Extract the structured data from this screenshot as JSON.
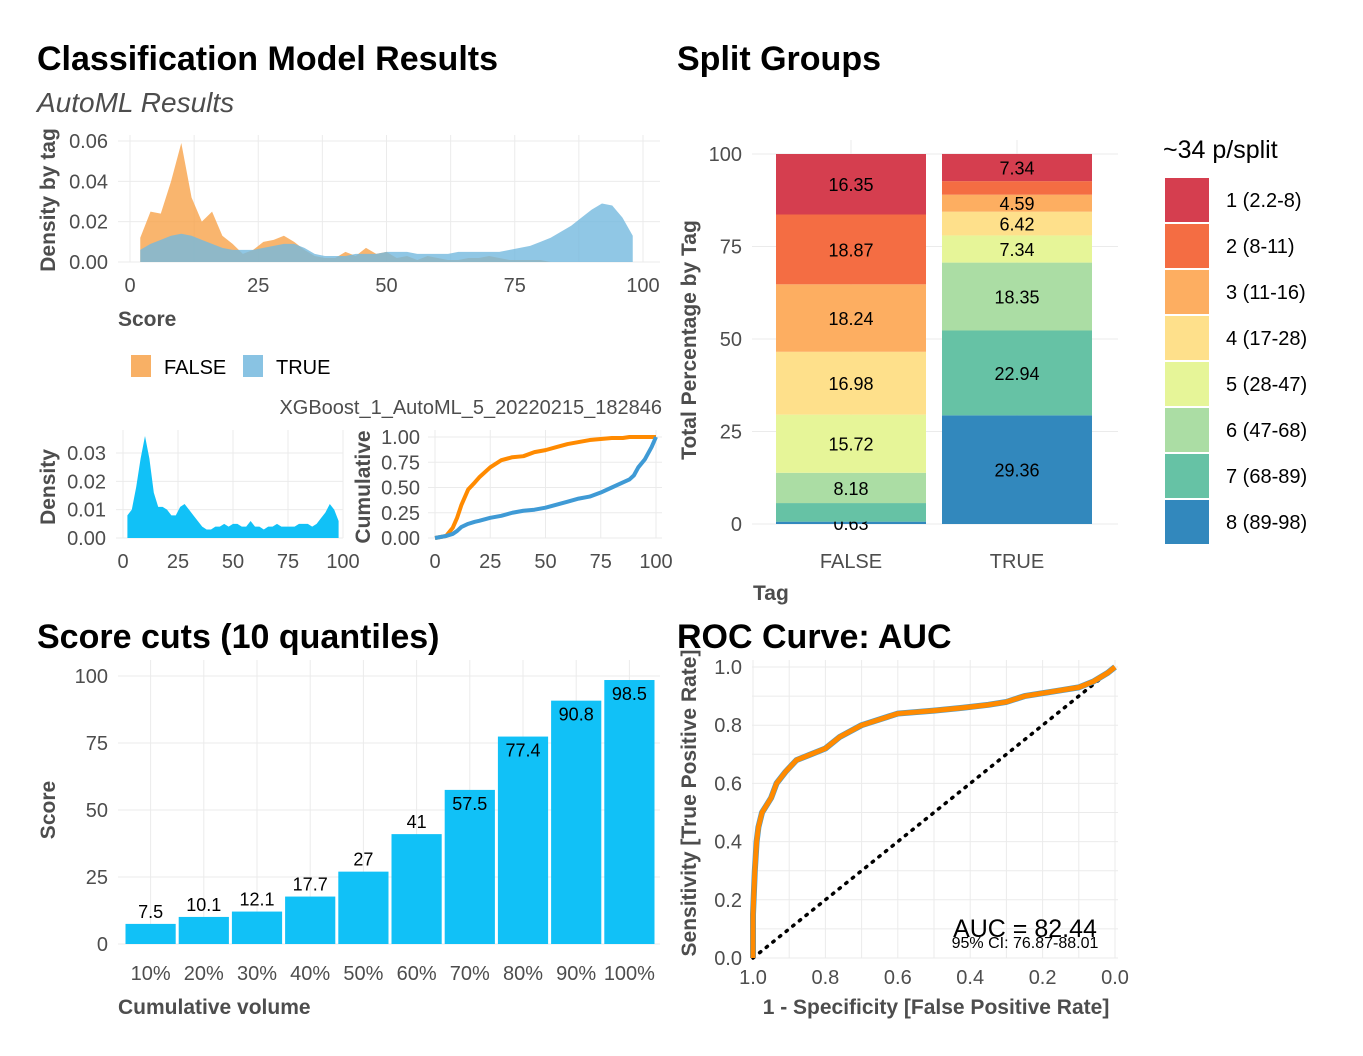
{
  "titles": {
    "main": "Classification Model Results",
    "main_sub": "AutoML Results",
    "split": "Split Groups",
    "cuts": "Score cuts (10 quantiles)",
    "roc": "ROC Curve: AUC"
  },
  "model_name": "XGBoost_1_AutoML_5_20220215_182846",
  "colors": {
    "false": "#F7A24A",
    "true": "#74B9DE",
    "density": "#11C1F7",
    "cum_false": "#FF8A00",
    "cum_true": "#3F9AD5",
    "roc": "#FF8A00",
    "split": [
      "#D53E4F",
      "#F46D43",
      "#FDAE61",
      "#FEE08B",
      "#E6F598",
      "#ABDDA4",
      "#66C2A5",
      "#3288BD"
    ]
  },
  "chart_data": [
    {
      "id": "density_by_tag",
      "type": "area",
      "xlabel": "Score",
      "ylabel": "Density by tag",
      "xticks": [
        "0",
        "25",
        "50",
        "75",
        "100"
      ],
      "yticks": [
        "0.00",
        "0.02",
        "0.04",
        "0.06"
      ],
      "xlim": [
        0,
        100
      ],
      "ylim": [
        0,
        0.06
      ],
      "legend": [
        "FALSE",
        "TRUE"
      ],
      "x": [
        2,
        4,
        6,
        8,
        10,
        12,
        14,
        16,
        18,
        20,
        22,
        24,
        26,
        28,
        30,
        32,
        34,
        36,
        38,
        40,
        42,
        44,
        46,
        48,
        50,
        52,
        54,
        56,
        58,
        60,
        62,
        64,
        66,
        68,
        70,
        72,
        74,
        76,
        78,
        80,
        82,
        84,
        86,
        88,
        90,
        92,
        94,
        96,
        98
      ],
      "series": [
        {
          "name": "FALSE",
          "values": [
            0.012,
            0.025,
            0.024,
            0.04,
            0.059,
            0.032,
            0.02,
            0.025,
            0.013,
            0.009,
            0.004,
            0.006,
            0.01,
            0.011,
            0.013,
            0.01,
            0.006,
            0.003,
            0.002,
            0.002,
            0.005,
            0.003,
            0.007,
            0.004,
            0.005,
            0.002,
            0.003,
            0.001,
            0.003,
            0.002,
            0.001,
            0.001,
            0.002,
            0.002,
            0.003,
            0.002,
            0.001,
            0.001,
            0.001,
            0.001,
            0.0,
            0.0,
            0.0,
            0.0,
            0.0,
            0.0,
            0.0,
            0.0,
            0.0
          ]
        },
        {
          "name": "TRUE",
          "values": [
            0.006,
            0.009,
            0.011,
            0.013,
            0.014,
            0.013,
            0.011,
            0.009,
            0.007,
            0.006,
            0.006,
            0.006,
            0.007,
            0.008,
            0.009,
            0.009,
            0.007,
            0.004,
            0.003,
            0.003,
            0.003,
            0.004,
            0.004,
            0.004,
            0.005,
            0.005,
            0.005,
            0.004,
            0.004,
            0.004,
            0.004,
            0.005,
            0.005,
            0.005,
            0.005,
            0.005,
            0.006,
            0.007,
            0.008,
            0.01,
            0.012,
            0.015,
            0.018,
            0.022,
            0.026,
            0.029,
            0.028,
            0.022,
            0.013
          ]
        }
      ]
    },
    {
      "id": "density_total",
      "type": "area",
      "xlabel": "",
      "ylabel": "Density",
      "xticks": [
        "0",
        "25",
        "50",
        "75",
        "100"
      ],
      "yticks": [
        "0.00",
        "0.01",
        "0.02",
        "0.03"
      ],
      "xlim": [
        0,
        100
      ],
      "ylim": [
        0,
        0.035
      ],
      "x": [
        2,
        4,
        6,
        8,
        10,
        12,
        14,
        16,
        18,
        20,
        22,
        24,
        26,
        28,
        30,
        32,
        34,
        36,
        38,
        40,
        42,
        44,
        46,
        48,
        50,
        52,
        54,
        56,
        58,
        60,
        62,
        64,
        66,
        68,
        70,
        72,
        74,
        76,
        78,
        80,
        82,
        84,
        86,
        88,
        90,
        92,
        94,
        96,
        98
      ],
      "values": [
        0.008,
        0.01,
        0.018,
        0.028,
        0.036,
        0.028,
        0.016,
        0.011,
        0.011,
        0.01,
        0.008,
        0.008,
        0.011,
        0.012,
        0.01,
        0.008,
        0.006,
        0.004,
        0.003,
        0.003,
        0.004,
        0.004,
        0.005,
        0.004,
        0.005,
        0.005,
        0.004,
        0.004,
        0.006,
        0.004,
        0.004,
        0.003,
        0.004,
        0.004,
        0.005,
        0.004,
        0.004,
        0.004,
        0.004,
        0.005,
        0.005,
        0.005,
        0.004,
        0.005,
        0.007,
        0.009,
        0.012,
        0.01,
        0.006
      ]
    },
    {
      "id": "cumulative",
      "type": "line",
      "xlabel": "",
      "ylabel": "Cumulative",
      "xticks": [
        "0",
        "25",
        "50",
        "75",
        "100"
      ],
      "yticks": [
        "0.00",
        "0.25",
        "0.50",
        "0.75",
        "1.00"
      ],
      "xlim": [
        0,
        100
      ],
      "ylim": [
        0,
        1
      ],
      "x": [
        0,
        5,
        8,
        10,
        12,
        15,
        18,
        20,
        25,
        30,
        35,
        40,
        45,
        50,
        55,
        60,
        65,
        70,
        75,
        80,
        85,
        88,
        90,
        92,
        95,
        98,
        100
      ],
      "series": [
        {
          "name": "FALSE",
          "values": [
            0.0,
            0.02,
            0.1,
            0.2,
            0.33,
            0.48,
            0.55,
            0.6,
            0.7,
            0.77,
            0.8,
            0.81,
            0.85,
            0.87,
            0.9,
            0.93,
            0.95,
            0.97,
            0.98,
            0.99,
            0.99,
            1.0,
            1.0,
            1.0,
            1.0,
            1.0,
            1.0
          ]
        },
        {
          "name": "TRUE",
          "values": [
            0.0,
            0.02,
            0.04,
            0.07,
            0.11,
            0.14,
            0.16,
            0.17,
            0.2,
            0.22,
            0.25,
            0.27,
            0.28,
            0.3,
            0.33,
            0.36,
            0.39,
            0.41,
            0.45,
            0.5,
            0.55,
            0.58,
            0.62,
            0.7,
            0.78,
            0.9,
            1.0
          ]
        }
      ]
    },
    {
      "id": "split_groups",
      "type": "bar",
      "xlabel": "Tag",
      "ylabel": "Total Percentage by Tag",
      "categories": [
        "FALSE",
        "TRUE"
      ],
      "yticks": [
        "0",
        "25",
        "50",
        "75",
        "100"
      ],
      "ylim": [
        0,
        100
      ],
      "legend_title": "~34 p/split",
      "groups": [
        "1 (2.2-8)",
        "2 (8-11)",
        "3 (11-16)",
        "4 (17-28)",
        "5 (28-47)",
        "6 (47-68)",
        "7 (68-89)",
        "8 (89-98)"
      ],
      "values": {
        "FALSE": [
          16.35,
          18.87,
          18.24,
          16.98,
          15.72,
          8.18,
          5.03,
          0.63
        ],
        "TRUE": [
          7.34,
          3.67,
          4.59,
          6.42,
          7.34,
          18.35,
          22.94,
          29.36
        ]
      },
      "labels": {
        "FALSE": [
          "16.35",
          "18.87",
          "18.24",
          "16.98",
          "15.72",
          "8.18",
          "",
          "0.63"
        ],
        "TRUE": [
          "7.34",
          "",
          "4.59",
          "6.42",
          "7.34",
          "18.35",
          "22.94",
          "29.36"
        ]
      }
    },
    {
      "id": "score_cuts",
      "type": "bar",
      "xlabel": "Cumulative volume",
      "ylabel": "Score",
      "categories": [
        "10%",
        "20%",
        "30%",
        "40%",
        "50%",
        "60%",
        "70%",
        "80%",
        "90%",
        "100%"
      ],
      "values": [
        7.5,
        10.1,
        12.1,
        17.7,
        27,
        41,
        57.5,
        77.4,
        90.8,
        98.5
      ],
      "labels": [
        "7.5",
        "10.1",
        "12.1",
        "17.7",
        "27",
        "41",
        "57.5",
        "77.4",
        "90.8",
        "98.5"
      ],
      "yticks": [
        "0",
        "25",
        "50",
        "75",
        "100"
      ],
      "ylim": [
        0,
        100
      ]
    },
    {
      "id": "roc",
      "type": "line",
      "xlabel": "1 - Specificity [False Positive Rate]",
      "ylabel": "Sensitivity [True Positive Rate]",
      "xticks": [
        "1.0",
        "0.8",
        "0.6",
        "0.4",
        "0.2",
        "0.0"
      ],
      "yticks": [
        "0.0",
        "0.2",
        "0.4",
        "0.6",
        "0.8",
        "1.0"
      ],
      "xlim": [
        1,
        0
      ],
      "ylim": [
        0,
        1
      ],
      "specificity": [
        1.0,
        1.0,
        0.995,
        0.99,
        0.985,
        0.975,
        0.965,
        0.95,
        0.935,
        0.91,
        0.88,
        0.84,
        0.8,
        0.76,
        0.7,
        0.6,
        0.5,
        0.42,
        0.35,
        0.3,
        0.25,
        0.2,
        0.15,
        0.1,
        0.06,
        0.02,
        0.0
      ],
      "sensitivity": [
        0.0,
        0.15,
        0.3,
        0.4,
        0.45,
        0.5,
        0.52,
        0.55,
        0.6,
        0.64,
        0.68,
        0.7,
        0.72,
        0.76,
        0.8,
        0.84,
        0.85,
        0.86,
        0.87,
        0.88,
        0.9,
        0.91,
        0.92,
        0.93,
        0.95,
        0.98,
        1.0
      ],
      "auc_label": "AUC = 82.44",
      "ci_label": "95% CI: 76.87-88.01"
    }
  ]
}
